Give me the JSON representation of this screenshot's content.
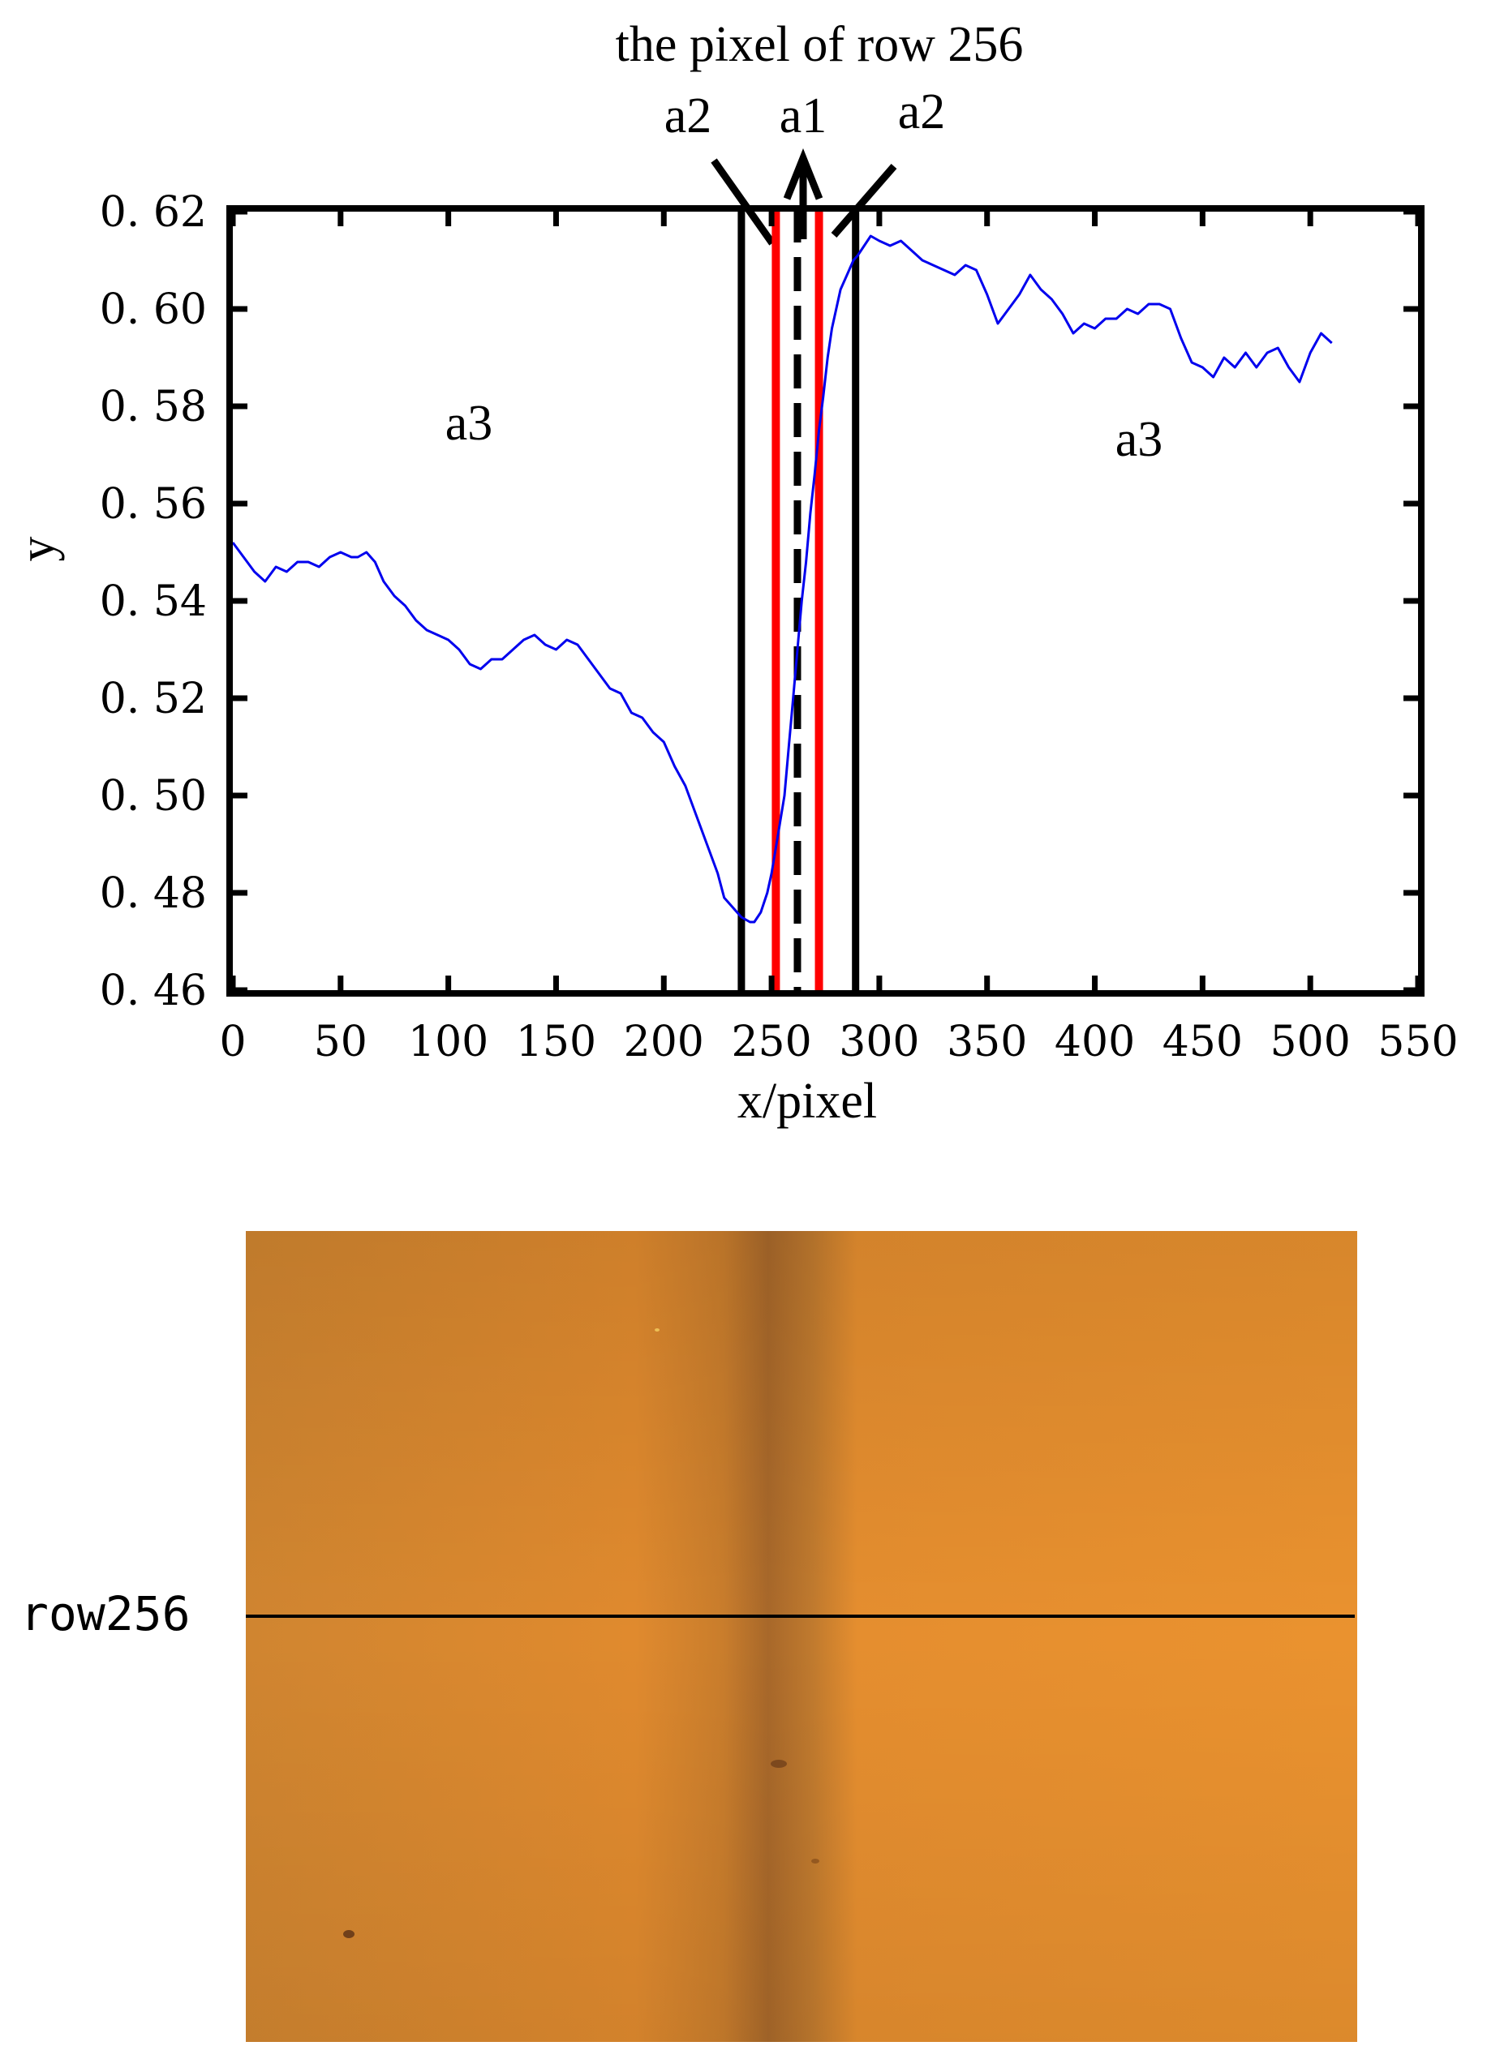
{
  "chart_data": {
    "type": "line",
    "title": "the pixel of row 256",
    "xlabel": "x/pixel",
    "ylabel": "y",
    "xlim": [
      0,
      550
    ],
    "ylim": [
      0.46,
      0.62
    ],
    "x_ticks": [
      0,
      50,
      100,
      150,
      200,
      250,
      300,
      350,
      400,
      450,
      500,
      550
    ],
    "y_ticks": [
      0.46,
      0.48,
      0.5,
      0.52,
      0.54,
      0.56,
      0.58,
      0.6,
      0.62
    ],
    "x_tick_labels": [
      "0",
      "50",
      "100",
      "150",
      "200",
      "250",
      "300",
      "350",
      "400",
      "450",
      "500",
      "550"
    ],
    "y_tick_labels": [
      "0. 46",
      "0. 48",
      "0. 50",
      "0. 52",
      "0. 54",
      "0. 56",
      "0. 58",
      "0. 60",
      "0. 62"
    ],
    "grid": false,
    "series": [
      {
        "color": "#0000ee",
        "x": [
          0,
          5,
          10,
          15,
          20,
          25,
          30,
          35,
          40,
          45,
          50,
          55,
          58,
          62,
          66,
          70,
          75,
          80,
          85,
          90,
          95,
          100,
          105,
          110,
          115,
          120,
          125,
          130,
          135,
          140,
          145,
          150,
          155,
          160,
          165,
          170,
          175,
          180,
          185,
          190,
          195,
          200,
          205,
          210,
          215,
          220,
          225,
          228,
          232,
          236,
          240,
          242,
          245,
          248,
          250,
          253,
          256,
          258,
          260,
          262,
          264,
          266,
          268,
          270,
          272,
          274,
          276,
          278,
          280,
          282,
          285,
          288,
          290,
          293,
          296,
          300,
          305,
          310,
          315,
          320,
          325,
          330,
          335,
          340,
          345,
          350,
          355,
          360,
          365,
          370,
          375,
          380,
          385,
          390,
          395,
          400,
          405,
          410,
          415,
          420,
          425,
          430,
          435,
          440,
          445,
          450,
          455,
          460,
          465,
          470,
          475,
          480,
          485,
          490,
          495,
          500,
          505,
          510
        ],
        "y": [
          0.552,
          0.549,
          0.546,
          0.544,
          0.547,
          0.546,
          0.548,
          0.548,
          0.547,
          0.549,
          0.55,
          0.549,
          0.549,
          0.55,
          0.548,
          0.544,
          0.541,
          0.539,
          0.536,
          0.534,
          0.533,
          0.532,
          0.53,
          0.527,
          0.526,
          0.528,
          0.528,
          0.53,
          0.532,
          0.533,
          0.531,
          0.53,
          0.532,
          0.531,
          0.528,
          0.525,
          0.522,
          0.521,
          0.517,
          0.516,
          0.513,
          0.511,
          0.506,
          0.502,
          0.496,
          0.49,
          0.484,
          0.479,
          0.477,
          0.475,
          0.474,
          0.474,
          0.476,
          0.48,
          0.484,
          0.492,
          0.5,
          0.51,
          0.52,
          0.53,
          0.54,
          0.548,
          0.558,
          0.566,
          0.575,
          0.582,
          0.59,
          0.596,
          0.6,
          0.604,
          0.607,
          0.61,
          0.611,
          0.613,
          0.615,
          0.614,
          0.613,
          0.614,
          0.612,
          0.61,
          0.609,
          0.608,
          0.607,
          0.609,
          0.608,
          0.603,
          0.597,
          0.6,
          0.603,
          0.607,
          0.604,
          0.602,
          0.599,
          0.595,
          0.597,
          0.596,
          0.598,
          0.598,
          0.6,
          0.599,
          0.601,
          0.601,
          0.6,
          0.594,
          0.589,
          0.588,
          0.586,
          0.59,
          0.588,
          0.591,
          0.588,
          0.591,
          0.592,
          0.588,
          0.585,
          0.591,
          0.595,
          0.593
        ]
      }
    ],
    "region_lines": [
      {
        "x": 236,
        "color": "#000000",
        "style": "solid"
      },
      {
        "x": 252,
        "color": "#ff0000",
        "style": "solid"
      },
      {
        "x": 262,
        "color": "#000000",
        "style": "dashed"
      },
      {
        "x": 272,
        "color": "#ff0000",
        "style": "solid"
      },
      {
        "x": 289,
        "color": "#000000",
        "style": "solid"
      }
    ],
    "annotations": {
      "a1": "a1",
      "a2_left": "a2",
      "a2_right": "a2",
      "a3_left": "a3",
      "a3_right": "a3"
    }
  },
  "photo": {
    "row_label": "row256",
    "base_color": "#e08a2e",
    "dark_band_color": "#b06a22"
  }
}
